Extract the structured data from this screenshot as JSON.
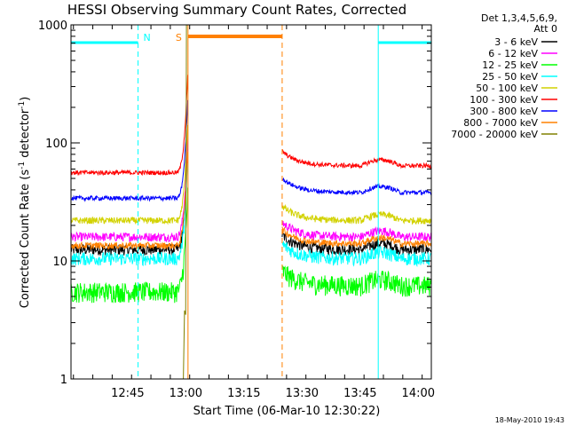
{
  "chart_data": {
    "type": "line",
    "title": "HESSI Observing Summary Count Rates, Corrected",
    "xlabel": "Start Time (06-Mar-10 12:30:22)",
    "ylabel_main": "Corrected Count Rate (s",
    "ylabel_sup1": "-1",
    "ylabel_mid": " detector",
    "ylabel_sup2": "-1",
    "ylabel_end": ")",
    "yscale": "log",
    "ylim": [
      1,
      1000
    ],
    "xlim_minutes": [
      0,
      93
    ],
    "y_ticks": [
      "1",
      "10",
      "100",
      "1000"
    ],
    "x_ticks": [
      {
        "label": "12:45",
        "minute": 14.63
      },
      {
        "label": "13:00",
        "minute": 29.63
      },
      {
        "label": "13:15",
        "minute": 44.63
      },
      {
        "label": "13:30",
        "minute": 59.63
      },
      {
        "label": "13:45",
        "minute": 74.63
      },
      {
        "label": "14:00",
        "minute": 89.63
      }
    ],
    "legend_header": [
      "Det 1,3,4,5,6,9,",
      "Att 0"
    ],
    "legend_position": "right",
    "series": [
      {
        "name": "3 - 6 keV",
        "color": "#000000",
        "v1": 12.5,
        "v2": 12.5,
        "noise": 0.05
      },
      {
        "name": "6 - 12 keV",
        "color": "#ff00ff",
        "v1": 16,
        "v2": 16,
        "noise": 0.04
      },
      {
        "name": "12 - 25 keV",
        "color": "#00ff00",
        "v1": 5.5,
        "v2": 6.2,
        "noise": 0.09
      },
      {
        "name": "25 - 50 keV",
        "color": "#00ffff",
        "v1": 10.5,
        "v2": 10.5,
        "noise": 0.06
      },
      {
        "name": "50 - 100 keV",
        "color": "#d2d200",
        "v1": 22,
        "v2": 22,
        "noise": 0.03
      },
      {
        "name": "100 - 300 keV",
        "color": "#ff0000",
        "v1": 56,
        "v2": 64,
        "noise": 0.02
      },
      {
        "name": "300 - 800 keV",
        "color": "#0000ff",
        "v1": 34,
        "v2": 38,
        "noise": 0.02
      },
      {
        "name": "800 - 7000 keV",
        "color": "#ff8000",
        "v1": 13.5,
        "v2": 14,
        "noise": 0.03
      },
      {
        "name": "7000 - 20000 keV",
        "color": "#808000",
        "v1": null,
        "v2": null,
        "noise": 0
      }
    ],
    "data_gap_minutes": [
      30.2,
      54.5
    ],
    "annotations": [
      {
        "label": "N",
        "color": "#00ffff"
      },
      {
        "label": "S",
        "color": "#ff8000"
      }
    ],
    "night_intervals_minutes": [
      [
        0,
        17.3
      ],
      [
        79.3,
        93
      ]
    ],
    "saa_interval_minutes": [
      30.2,
      54.5
    ],
    "date_stamp": "18-May-2010 19:43"
  }
}
